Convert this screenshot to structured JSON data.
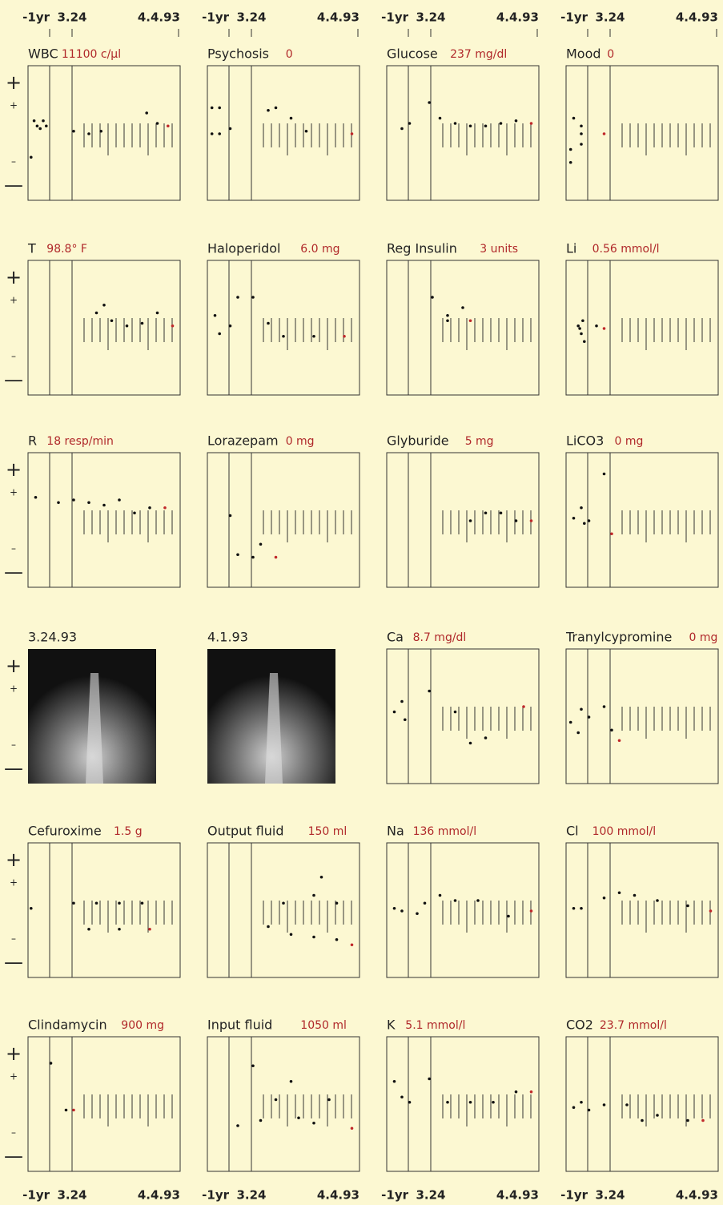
{
  "axis_labels": [
    "-1yr",
    "3.24",
    "4.4.93"
  ],
  "scale_marks": [
    "+",
    "+",
    "–",
    "—"
  ],
  "rows": [
    [
      {
        "name": "WBC",
        "reading": "11100 c/μl",
        "points": [
          [
            2,
            -0.9
          ],
          [
            4,
            0.5
          ],
          [
            6,
            0.3
          ],
          [
            8,
            0.2
          ],
          [
            10,
            0.5
          ],
          [
            12,
            0.3
          ],
          [
            30,
            0.1
          ],
          [
            40,
            0.0
          ],
          [
            48,
            0.1
          ],
          [
            78,
            0.8
          ],
          [
            85,
            0.4
          ],
          [
            92,
            0.3
          ]
        ]
      },
      {
        "name": "Psychosis",
        "reading": "0",
        "points": [
          [
            3,
            1
          ],
          [
            8,
            1
          ],
          [
            3,
            0
          ],
          [
            8,
            0
          ],
          [
            15,
            0.2
          ],
          [
            40,
            0.9
          ],
          [
            45,
            1
          ],
          [
            55,
            0.6
          ],
          [
            65,
            0.1
          ],
          [
            95,
            0
          ]
        ]
      },
      {
        "name": "Glucose",
        "reading": "237 mg/dl",
        "points": [
          [
            10,
            0.2
          ],
          [
            15,
            0.4
          ],
          [
            28,
            1.2
          ],
          [
            35,
            0.6
          ],
          [
            45,
            0.4
          ],
          [
            55,
            0.3
          ],
          [
            65,
            0.3
          ],
          [
            75,
            0.4
          ],
          [
            85,
            0.5
          ],
          [
            95,
            0.4
          ]
        ]
      },
      {
        "name": "Mood",
        "reading": "0",
        "points": [
          [
            5,
            0.6
          ],
          [
            10,
            0.3
          ],
          [
            10,
            0
          ],
          [
            10,
            -0.4
          ],
          [
            3,
            -0.6
          ],
          [
            3,
            -1.1
          ],
          [
            25,
            0
          ]
        ]
      }
    ],
    [
      {
        "name": "T",
        "reading": "98.8° F",
        "points": [
          [
            45,
            0.6
          ],
          [
            50,
            0.9
          ],
          [
            55,
            0.3
          ],
          [
            65,
            0.1
          ],
          [
            75,
            0.2
          ],
          [
            85,
            0.6
          ],
          [
            95,
            0.1
          ]
        ]
      },
      {
        "name": "Haloperidol",
        "reading": "6.0 mg",
        "points": [
          [
            5,
            0.5
          ],
          [
            8,
            -0.2
          ],
          [
            15,
            0.1
          ],
          [
            20,
            1.2
          ],
          [
            30,
            1.2
          ],
          [
            40,
            0.2
          ],
          [
            50,
            -0.3
          ],
          [
            70,
            -0.3
          ],
          [
            90,
            -0.3
          ]
        ]
      },
      {
        "name": "Reg Insulin",
        "reading": "3 units",
        "points": [
          [
            30,
            1.2
          ],
          [
            40,
            0.5
          ],
          [
            50,
            0.8
          ],
          [
            40,
            0.3
          ],
          [
            55,
            0.3
          ]
        ]
      },
      {
        "name": "Li",
        "reading": "0.56 mmol/l",
        "points": [
          [
            8,
            0.1
          ],
          [
            10,
            -0.2
          ],
          [
            12,
            -0.5
          ],
          [
            9,
            0
          ],
          [
            11,
            0.3
          ],
          [
            20,
            0.1
          ],
          [
            25,
            0.0
          ]
        ]
      }
    ],
    [
      {
        "name": "R",
        "reading": "18 resp/min",
        "points": [
          [
            5,
            0.9
          ],
          [
            20,
            0.7
          ],
          [
            30,
            0.8
          ],
          [
            40,
            0.7
          ],
          [
            50,
            0.6
          ],
          [
            60,
            0.8
          ],
          [
            70,
            0.3
          ],
          [
            80,
            0.5
          ],
          [
            90,
            0.5
          ]
        ]
      },
      {
        "name": "Lorazepam",
        "reading": "0 mg",
        "points": [
          [
            15,
            0.2
          ],
          [
            20,
            -1.3
          ],
          [
            30,
            -1.4
          ],
          [
            35,
            -0.9
          ],
          [
            45,
            -1.4
          ]
        ]
      },
      {
        "name": "Glyburide",
        "reading": "5 mg",
        "points": [
          [
            55,
            0
          ],
          [
            65,
            0.3
          ],
          [
            75,
            0.3
          ],
          [
            85,
            0
          ],
          [
            95,
            0
          ]
        ]
      },
      {
        "name": "LiCO3",
        "reading": "0 mg",
        "points": [
          [
            5,
            0.1
          ],
          [
            10,
            0.5
          ],
          [
            12,
            -0.1
          ],
          [
            15,
            0
          ],
          [
            25,
            1.8
          ],
          [
            30,
            -0.5
          ]
        ]
      }
    ],
    [
      {
        "caption": "3.24.93"
      },
      {
        "caption": "4.1.93"
      },
      {
        "name": "Ca",
        "reading": "8.7 mg/dl",
        "points": [
          [
            5,
            0.2
          ],
          [
            10,
            0.6
          ],
          [
            12,
            -0.1
          ],
          [
            28,
            1
          ],
          [
            45,
            0.2
          ],
          [
            55,
            -1.0
          ],
          [
            65,
            -0.8
          ],
          [
            90,
            0.4
          ]
        ]
      },
      {
        "name": "Tranylcypromine",
        "reading": "0 mg",
        "points": [
          [
            3,
            -0.2
          ],
          [
            8,
            -0.6
          ],
          [
            10,
            0.3
          ],
          [
            15,
            0
          ],
          [
            25,
            0.4
          ],
          [
            30,
            -0.5
          ],
          [
            35,
            -0.9
          ]
        ]
      }
    ],
    [
      {
        "name": "Cefuroxime",
        "reading": "1.5 g",
        "points": [
          [
            2,
            0.1
          ],
          [
            30,
            0.3
          ],
          [
            45,
            0.3
          ],
          [
            60,
            0.3
          ],
          [
            75,
            0.3
          ],
          [
            40,
            -0.7
          ],
          [
            60,
            -0.7
          ],
          [
            80,
            -0.7
          ]
        ]
      },
      {
        "name": "Output fluid",
        "reading": "150 ml",
        "points": [
          [
            50,
            0.3
          ],
          [
            70,
            0.6
          ],
          [
            75,
            1.3
          ],
          [
            85,
            0.3
          ],
          [
            40,
            -0.6
          ],
          [
            55,
            -0.9
          ],
          [
            70,
            -1.0
          ],
          [
            85,
            -1.1
          ],
          [
            95,
            -1.3
          ]
        ]
      },
      {
        "name": "Na",
        "reading": "136 mmol/l",
        "points": [
          [
            5,
            0.1
          ],
          [
            10,
            0
          ],
          [
            20,
            -0.1
          ],
          [
            25,
            0.3
          ],
          [
            35,
            0.6
          ],
          [
            45,
            0.4
          ],
          [
            60,
            0.4
          ],
          [
            80,
            -0.2
          ],
          [
            95,
            0
          ]
        ]
      },
      {
        "name": "Cl",
        "reading": "100 mmol/l",
        "points": [
          [
            5,
            0.1
          ],
          [
            10,
            0.1
          ],
          [
            25,
            0.5
          ],
          [
            35,
            0.7
          ],
          [
            45,
            0.6
          ],
          [
            60,
            0.4
          ],
          [
            80,
            0.2
          ],
          [
            95,
            0
          ]
        ]
      }
    ],
    [
      {
        "name": "Clindamycin",
        "reading": "900 mg",
        "points": [
          [
            15,
            1.6
          ],
          [
            25,
            -0.2
          ],
          [
            30,
            -0.2
          ]
        ]
      },
      {
        "name": "Input fluid",
        "reading": "1050 ml",
        "points": [
          [
            20,
            -0.8
          ],
          [
            30,
            1.5
          ],
          [
            35,
            -0.6
          ],
          [
            45,
            0.2
          ],
          [
            55,
            0.9
          ],
          [
            60,
            -0.5
          ],
          [
            70,
            -0.7
          ],
          [
            80,
            0.2
          ],
          [
            95,
            -0.9
          ]
        ]
      },
      {
        "name": "K",
        "reading": "5.1 mmol/l",
        "points": [
          [
            5,
            0.9
          ],
          [
            10,
            0.3
          ],
          [
            15,
            0.1
          ],
          [
            28,
            1
          ],
          [
            40,
            0.1
          ],
          [
            55,
            0.1
          ],
          [
            70,
            0.1
          ],
          [
            85,
            0.5
          ],
          [
            95,
            0.5
          ]
        ]
      },
      {
        "name": "CO2",
        "reading": "23.7 mmol/l",
        "points": [
          [
            5,
            -0.1
          ],
          [
            10,
            0.1
          ],
          [
            15,
            -0.2
          ],
          [
            25,
            0
          ],
          [
            40,
            0
          ],
          [
            50,
            -0.6
          ],
          [
            60,
            -0.4
          ],
          [
            80,
            -0.6
          ],
          [
            90,
            -0.6
          ]
        ]
      }
    ]
  ]
}
